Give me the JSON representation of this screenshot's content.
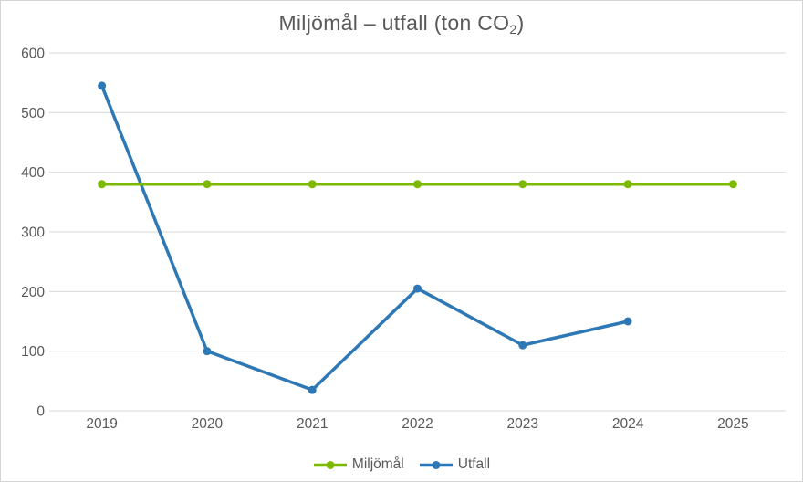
{
  "figure": {
    "background": "#FFFFFF",
    "border_color": "#D4D6D2",
    "text_color": "#595959",
    "gridline_color": "#D9D9D9"
  },
  "chart_data": {
    "type": "line",
    "title": "Miljömål – utfall (ton CO₂)",
    "title_parts": {
      "prefix": "Miljömål – utfall (ton CO",
      "subscript": "2",
      "suffix": ")"
    },
    "categories": [
      "2019",
      "2020",
      "2021",
      "2022",
      "2023",
      "2024",
      "2025"
    ],
    "yticks": [
      "0",
      "100",
      "200",
      "300",
      "400",
      "500",
      "600"
    ],
    "ylim": [
      0,
      600
    ],
    "xlabel": "",
    "ylabel": "",
    "grid": "horizontal",
    "legend_position": "bottom",
    "series": [
      {
        "name": "Utfall",
        "color": "#2E78B5",
        "marker": "circle",
        "values": [
          545,
          100,
          35,
          205,
          110,
          150,
          null
        ]
      },
      {
        "name": "Miljömål",
        "color": "#7CB900",
        "marker": "circle",
        "values": [
          380,
          380,
          380,
          380,
          380,
          380,
          380
        ]
      }
    ],
    "legend_order": [
      1,
      0
    ]
  }
}
